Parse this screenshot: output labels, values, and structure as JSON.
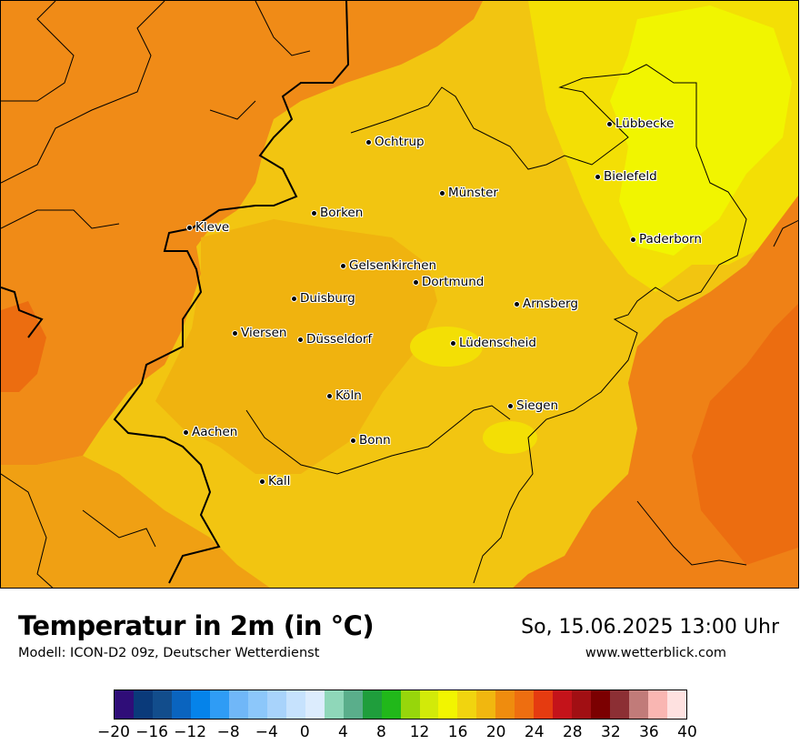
{
  "map": {
    "cities": [
      {
        "name": "Ochtrup"
      },
      {
        "name": "Lübbecke"
      },
      {
        "name": "Bielefeld"
      },
      {
        "name": "Münster"
      },
      {
        "name": "Borken"
      },
      {
        "name": "Kleve"
      },
      {
        "name": "Paderborn"
      },
      {
        "name": "Gelsenkirchen"
      },
      {
        "name": "Dortmund"
      },
      {
        "name": "Duisburg"
      },
      {
        "name": "Arnsberg"
      },
      {
        "name": "Viersen"
      },
      {
        "name": "Düsseldorf"
      },
      {
        "name": "Lüdenscheid"
      },
      {
        "name": "Köln"
      },
      {
        "name": "Siegen"
      },
      {
        "name": "Aachen"
      },
      {
        "name": "Bonn"
      },
      {
        "name": "Kall"
      }
    ]
  },
  "footer": {
    "title": "Temperatur in 2m (in °C)",
    "model": "Modell: ICON-D2 09z, Deutscher Wetterdienst",
    "datetime": "So, 15.06.2025 13:00 Uhr",
    "website": "www.wetterblick.com"
  },
  "legend": {
    "colors": [
      "#2f0d78",
      "#0a3a7a",
      "#124d8c",
      "#0a64bf",
      "#0583ea",
      "#2f9cf5",
      "#70b7f8",
      "#8cc7fa",
      "#a8d3fb",
      "#c6e2fd",
      "#dcecfd",
      "#8fd7b9",
      "#5aae8b",
      "#1f9e3c",
      "#21b81a",
      "#97d60b",
      "#d2ea09",
      "#f2f500",
      "#f1d40f",
      "#f1b70f",
      "#ef8c0e",
      "#ee6e10",
      "#e53b10",
      "#c4131a",
      "#a10f13",
      "#7b0001",
      "#8c2f34",
      "#c17b79",
      "#f9b6b2",
      "#fee1e0"
    ],
    "tick_labels": [
      "−20",
      "−16",
      "−12",
      "−8",
      "−4",
      "0",
      "4",
      "8",
      "12",
      "16",
      "20",
      "24",
      "28",
      "32",
      "36",
      "40"
    ]
  }
}
